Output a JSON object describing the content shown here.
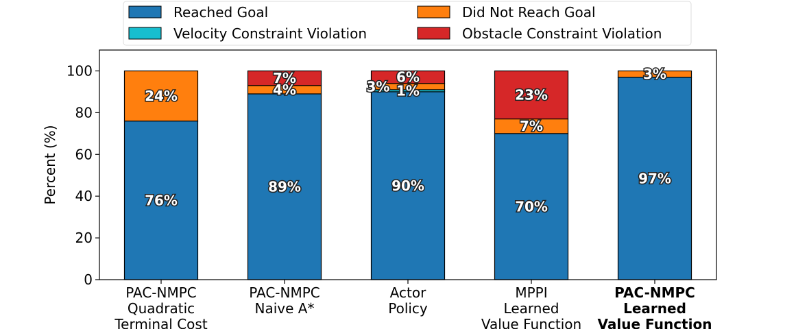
{
  "chart_data": {
    "type": "bar",
    "stacked": true,
    "title": "",
    "xlabel": "",
    "ylabel": "Percent (%)",
    "ylim": [
      0,
      110
    ],
    "yticks": [
      0,
      20,
      40,
      60,
      80,
      100
    ],
    "ytick_labels": [
      "0",
      "20",
      "40",
      "60",
      "80",
      "100"
    ],
    "grid": false,
    "legend_position": "top-center",
    "categories": [
      {
        "lines": [
          "PAC-NMPC",
          "Quadratic",
          "Terminal Cost"
        ],
        "bold": false
      },
      {
        "lines": [
          "PAC-NMPC",
          "Naive A*"
        ],
        "bold": false
      },
      {
        "lines": [
          "Actor",
          "Policy"
        ],
        "bold": false
      },
      {
        "lines": [
          "MPPI",
          "Learned",
          "Value Function"
        ],
        "bold": false
      },
      {
        "lines": [
          "PAC-NMPC",
          "Learned",
          "Value Function"
        ],
        "bold": true
      }
    ],
    "series": [
      {
        "name": "Reached Goal",
        "color": "#1f77b4",
        "values": [
          76,
          89,
          90,
          70,
          97
        ],
        "labels": [
          "76%",
          "89%",
          "90%",
          "70%",
          "97%"
        ]
      },
      {
        "name": "Velocity Constraint Violation",
        "color": "#17becf",
        "values": [
          0,
          0,
          1,
          0,
          0
        ],
        "labels": [
          "",
          "",
          "1%",
          "",
          ""
        ]
      },
      {
        "name": "Did Not Reach Goal",
        "color": "#ff7f0e",
        "values": [
          24,
          4,
          3,
          7,
          3
        ],
        "labels": [
          "24%",
          "4%",
          "3%",
          "7%",
          "3%"
        ]
      },
      {
        "name": "Obstacle Constraint Violation",
        "color": "#d62728",
        "values": [
          0,
          7,
          6,
          23,
          0
        ],
        "labels": [
          "",
          "7%",
          "6%",
          "23%",
          ""
        ]
      }
    ],
    "legend": [
      {
        "name": "Reached Goal",
        "color": "#1f77b4"
      },
      {
        "name": "Did Not Reach Goal",
        "color": "#ff7f0e"
      },
      {
        "name": "Velocity Constraint Violation",
        "color": "#17becf"
      },
      {
        "name": "Obstacle Constraint Violation",
        "color": "#d62728"
      }
    ]
  }
}
